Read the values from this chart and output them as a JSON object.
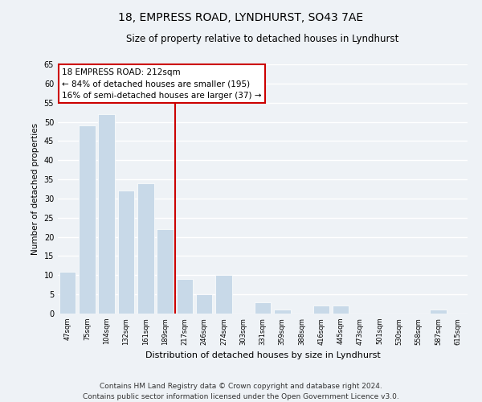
{
  "title": "18, EMPRESS ROAD, LYNDHURST, SO43 7AE",
  "subtitle": "Size of property relative to detached houses in Lyndhurst",
  "xlabel": "Distribution of detached houses by size in Lyndhurst",
  "ylabel": "Number of detached properties",
  "bar_labels": [
    "47sqm",
    "75sqm",
    "104sqm",
    "132sqm",
    "161sqm",
    "189sqm",
    "217sqm",
    "246sqm",
    "274sqm",
    "303sqm",
    "331sqm",
    "359sqm",
    "388sqm",
    "416sqm",
    "445sqm",
    "473sqm",
    "501sqm",
    "530sqm",
    "558sqm",
    "587sqm",
    "615sqm"
  ],
  "bar_values": [
    11,
    49,
    52,
    32,
    34,
    22,
    9,
    5,
    10,
    0,
    3,
    1,
    0,
    2,
    2,
    0,
    0,
    0,
    0,
    1,
    0
  ],
  "bar_color": "#c8d9e8",
  "bar_edge_color": "#ffffff",
  "property_line_index": 6,
  "property_line_color": "#cc0000",
  "ylim": [
    0,
    65
  ],
  "yticks": [
    0,
    5,
    10,
    15,
    20,
    25,
    30,
    35,
    40,
    45,
    50,
    55,
    60,
    65
  ],
  "annotation_line1": "18 EMPRESS ROAD: 212sqm",
  "annotation_line2": "← 84% of detached houses are smaller (195)",
  "annotation_line3": "16% of semi-detached houses are larger (37) →",
  "annotation_box_color": "#ffffff",
  "annotation_box_edge": "#cc0000",
  "footer_line1": "Contains HM Land Registry data © Crown copyright and database right 2024.",
  "footer_line2": "Contains public sector information licensed under the Open Government Licence v3.0.",
  "background_color": "#eef2f6",
  "plot_bg_color": "#eef2f6",
  "grid_color": "#ffffff",
  "title_fontsize": 10,
  "subtitle_fontsize": 8.5,
  "footer_fontsize": 6.5,
  "ylabel_fontsize": 7.5,
  "xlabel_fontsize": 8
}
